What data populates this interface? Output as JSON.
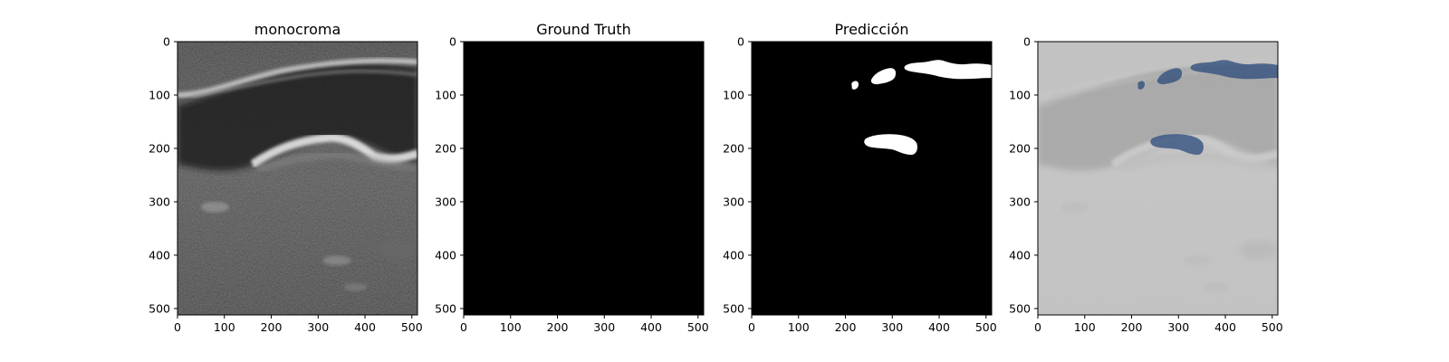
{
  "panels": [
    {
      "id": "monocroma",
      "title": "monocroma",
      "kind": "ultrasound"
    },
    {
      "id": "ground-truth",
      "title": "Ground Truth",
      "kind": "mask-empty"
    },
    {
      "id": "prediccion",
      "title": "Predicción",
      "kind": "mask-prediction"
    },
    {
      "id": "overlay",
      "title": "",
      "kind": "overlay"
    }
  ],
  "axes": {
    "x_ticks": [
      "0",
      "100",
      "200",
      "300",
      "400",
      "500"
    ],
    "y_ticks": [
      "0",
      "100",
      "200",
      "300",
      "400",
      "500"
    ],
    "x_range": [
      0,
      512
    ],
    "y_range": [
      0,
      512
    ]
  },
  "colors": {
    "mask_background": "#000000",
    "mask_foreground": "#ffffff",
    "overlay_tint": "#2c4a7c",
    "overlay_base": "#c6c6c6"
  }
}
